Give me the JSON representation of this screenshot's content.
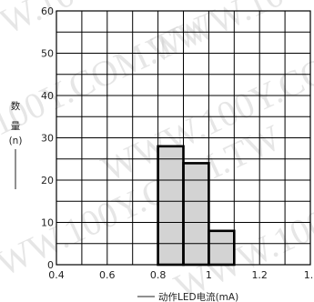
{
  "watermark": "WWW.100Y.COM.TW",
  "chart_data": {
    "type": "bar",
    "bins": [
      {
        "x0": 0.8,
        "x1": 0.9,
        "value": 28
      },
      {
        "x0": 0.9,
        "x1": 1.0,
        "value": 24
      },
      {
        "x0": 1.0,
        "x1": 1.1,
        "value": 8
      }
    ],
    "values": [
      28,
      24,
      8
    ],
    "xlim": [
      0.4,
      1.4
    ],
    "ylim": [
      0,
      60
    ],
    "xticks": [
      "0.4",
      "0.6",
      "0.8",
      "1",
      "1.2",
      "1."
    ],
    "yticks": [
      "0",
      "10",
      "20",
      "30",
      "40",
      "50",
      "60"
    ],
    "xlabel": "动作LED电流(mA)",
    "ylabel": [
      "数",
      "量",
      "(n)"
    ],
    "grid": true,
    "bar_fill": "#d3d3d3",
    "bar_stroke": "#000000"
  }
}
